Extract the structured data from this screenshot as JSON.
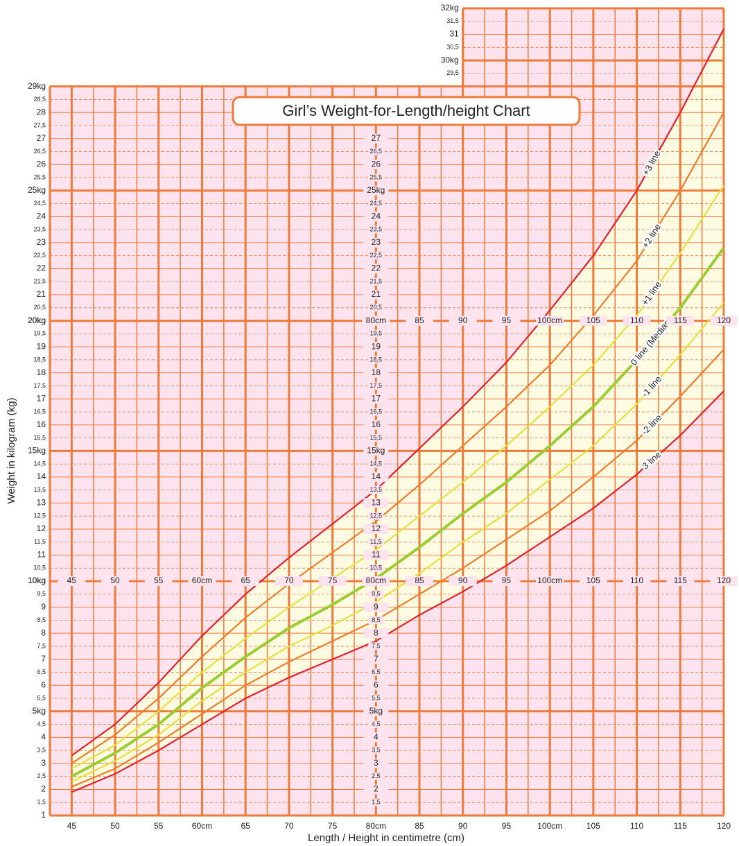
{
  "chart_data": {
    "type": "line",
    "title": "Girl’s Weight-for-Length/height Chart",
    "x_label": "Length / Height in centimetre (cm)",
    "y_label": "Weight in kilogram (kg)",
    "x": [
      45,
      50,
      55,
      60,
      65,
      70,
      75,
      80,
      85,
      90,
      95,
      100,
      105,
      110,
      115,
      120
    ],
    "series": [
      {
        "name": "+3 line",
        "color": "#e5202a",
        "values": [
          3.3,
          4.5,
          6.1,
          7.9,
          9.5,
          10.9,
          12.2,
          13.5,
          15.1,
          16.7,
          18.4,
          20.4,
          22.5,
          25.0,
          28.0,
          31.2
        ]
      },
      {
        "name": "+2 line",
        "color": "#f07c2a",
        "values": [
          3.0,
          4.1,
          5.5,
          7.1,
          8.6,
          9.9,
          11.1,
          12.3,
          13.7,
          15.2,
          16.7,
          18.3,
          20.2,
          22.3,
          25.0,
          28.0
        ]
      },
      {
        "name": "+1 line",
        "color": "#e6e03c",
        "values": [
          2.8,
          3.7,
          5.0,
          6.5,
          7.8,
          9.0,
          10.1,
          11.2,
          12.5,
          13.8,
          15.2,
          16.7,
          18.3,
          20.2,
          22.6,
          25.2
        ]
      },
      {
        "name": "0 line (Median)",
        "color": "#9acd32",
        "values": [
          2.5,
          3.4,
          4.5,
          5.9,
          7.1,
          8.2,
          9.1,
          10.1,
          11.3,
          12.6,
          13.8,
          15.2,
          16.7,
          18.5,
          20.5,
          22.8
        ]
      },
      {
        "name": "-1 line",
        "color": "#e6e03c",
        "values": [
          2.3,
          3.1,
          4.1,
          5.4,
          6.5,
          7.5,
          8.3,
          9.2,
          10.3,
          11.5,
          12.6,
          13.9,
          15.2,
          16.8,
          18.7,
          20.7
        ]
      },
      {
        "name": "-2 line",
        "color": "#f07c2a",
        "values": [
          2.1,
          2.8,
          3.8,
          4.9,
          6.0,
          6.9,
          7.7,
          8.5,
          9.5,
          10.5,
          11.6,
          12.7,
          14.0,
          15.4,
          17.1,
          18.9
        ]
      },
      {
        "name": "3 line",
        "color": "#e5202a",
        "values": [
          1.9,
          2.6,
          3.5,
          4.5,
          5.5,
          6.3,
          7.0,
          7.7,
          8.7,
          9.6,
          10.6,
          11.7,
          12.8,
          14.1,
          15.6,
          17.3
        ]
      }
    ],
    "xlim": [
      42.5,
      120
    ],
    "xticks": [
      45,
      50,
      55,
      {
        "value": 60,
        "label": "60cm"
      },
      65,
      70,
      75,
      {
        "value": 80,
        "label": "80cm"
      },
      85,
      90,
      95,
      {
        "value": 100,
        "label": "100cm"
      },
      105,
      110,
      115,
      120
    ],
    "xminorticks": [
      47.5,
      52.5,
      57.5,
      62.5,
      67.5,
      72.5,
      77.5,
      82.5,
      87.5,
      92.5,
      97.5,
      102.5,
      107.5,
      112.5,
      117.5
    ],
    "ylim": [
      1,
      32
    ],
    "yticks": [
      1,
      {
        "value": 1.5,
        "label": "1,5"
      },
      2,
      {
        "value": 2.5,
        "label": "2,5"
      },
      3,
      {
        "value": 3.5,
        "label": "3,5"
      },
      4,
      {
        "value": 4.5,
        "label": "4,5"
      },
      {
        "value": 5,
        "label": "5kg"
      },
      {
        "value": 5.5,
        "label": "5,5"
      },
      6,
      {
        "value": 6.5,
        "label": "6,5"
      },
      7,
      {
        "value": 7.5,
        "label": "7,5"
      },
      8,
      {
        "value": 8.5,
        "label": "8,5"
      },
      9,
      {
        "value": 9.5,
        "label": "9,5"
      },
      {
        "value": 10,
        "label": "10kg"
      },
      {
        "value": 10.5,
        "label": "10,5"
      },
      11,
      {
        "value": 11.5,
        "label": "11,5"
      },
      12,
      {
        "value": 12.5,
        "label": "12,5"
      },
      13,
      {
        "value": 13.5,
        "label": "13,5"
      },
      14,
      {
        "value": 14.5,
        "label": "14,5"
      },
      {
        "value": 15,
        "label": "15kg"
      },
      {
        "value": 15.5,
        "label": "15,5"
      },
      16,
      {
        "value": 16.5,
        "label": "16,5"
      },
      17,
      {
        "value": 17.5,
        "label": "17,5"
      },
      18,
      {
        "value": 18.5,
        "label": "18,5"
      },
      19,
      {
        "value": 19.5,
        "label": "19,5"
      },
      {
        "value": 20,
        "label": "20kg"
      },
      {
        "value": 20.5,
        "label": "20,5"
      },
      21,
      {
        "value": 21.5,
        "label": "21,5"
      },
      22,
      {
        "value": 22.5,
        "label": "22,5"
      },
      23,
      {
        "value": 23.5,
        "label": "23,5"
      },
      24,
      {
        "value": 24.5,
        "label": "24,5"
      },
      {
        "value": 25,
        "label": "25kg"
      },
      {
        "value": 25.5,
        "label": "25,5"
      },
      26,
      {
        "value": 26.5,
        "label": "26,5"
      },
      27,
      {
        "value": 27.5,
        "label": "27,5"
      },
      28,
      {
        "value": 28.5,
        "label": "28,5"
      },
      {
        "value": 29,
        "label": "29kg"
      },
      {
        "value": 29.5,
        "label": "29,5"
      },
      {
        "value": 30,
        "label": "30kg"
      },
      {
        "value": 30.5,
        "label": "30,5"
      },
      31,
      {
        "value": 31.5,
        "label": "31,5"
      },
      {
        "value": 32,
        "label": "32kg"
      }
    ],
    "grid": true
  }
}
